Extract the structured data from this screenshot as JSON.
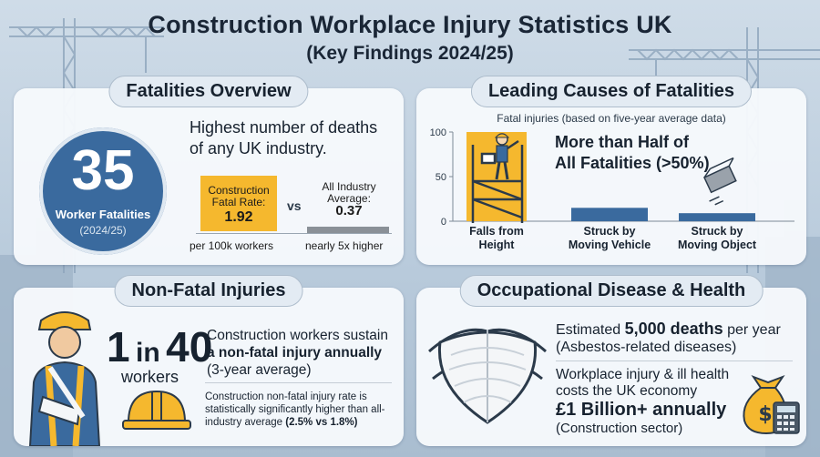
{
  "title": "Construction Workplace Injury Statistics UK",
  "subtitle": "(Key Findings 2024/25)",
  "fatalities": {
    "heading": "Fatalities Overview",
    "count": "35",
    "count_label": "Worker Fatalities",
    "count_year": "(2024/25)",
    "headline_line1": "Highest number of deaths",
    "headline_line2": "of any UK industry.",
    "construction_rate_label_1": "Construction",
    "construction_rate_label_2": "Fatal Rate:",
    "construction_rate_value": "1.92",
    "vs_label": "vs",
    "industry_label_1": "All Industry",
    "industry_label_2": "Average:",
    "industry_value": "0.37",
    "unit_note": "per 100k workers",
    "comparison_note": "nearly 5x higher"
  },
  "causes": {
    "heading": "Leading Causes of Fatalities",
    "subheading": "Fatal injuries (based on five-year average data)",
    "callout_line1": "More than Half of",
    "callout_line2": "All Fatalities (>50%)"
  },
  "chart_data": {
    "type": "bar",
    "title": "",
    "subtitle": "Fatal injuries (based on five-year average data)",
    "categories": [
      "Falls from Height",
      "Struck by Moving Vehicle",
      "Struck by Moving Object"
    ],
    "category_lines": [
      [
        "Falls from",
        "Height"
      ],
      [
        "Struck by",
        "Moving Vehicle"
      ],
      [
        "Struck by",
        "Moving Object"
      ]
    ],
    "values": [
      100,
      15,
      9
    ],
    "ylim": [
      0,
      100
    ],
    "yticks": [
      0,
      50,
      100
    ],
    "bar_colors": [
      "#f5b82e",
      "#3a6a9e",
      "#3a6a9e"
    ],
    "grid": false,
    "xlabel": "",
    "ylabel": ""
  },
  "non_fatal": {
    "heading": "Non-Fatal Injuries",
    "ratio_one": "1",
    "ratio_in": "in",
    "ratio_forty": "40",
    "workers": "workers",
    "desc_plain": "Construction workers sustain",
    "desc_bold": "a non-fatal injury annually",
    "desc_tail": "(3-year average)",
    "note_plain": "Construction non-fatal injury rate is statistically significantly higher than all-industry average",
    "note_bold": "(2.5% vs 1.8%)"
  },
  "disease": {
    "heading": "Occupational Disease & Health",
    "line1_plain": "Estimated",
    "line1_bold": "5,000 deaths",
    "line1_tail": "per year",
    "line1_sub": "(Asbestos-related diseases)",
    "line2_a": "Workplace injury & ill health",
    "line2_b": "costs the UK economy",
    "big_value": "£1 Billion+ annually",
    "sector": "(Construction sector)"
  },
  "icons": {
    "crane": "crane-icon",
    "worker_ladder": "worker-on-scaffold-icon",
    "falling_object": "falling-block-icon",
    "injured_worker": "injured-worker-icon",
    "hard_hat": "hard-hat-icon",
    "mask": "respirator-mask-icon",
    "money_bag": "money-bag-icon",
    "calculator": "calculator-icon"
  },
  "colors": {
    "accent_blue": "#3a6a9e",
    "accent_yellow": "#f5b82e",
    "grey_bar": "#8a9097"
  }
}
